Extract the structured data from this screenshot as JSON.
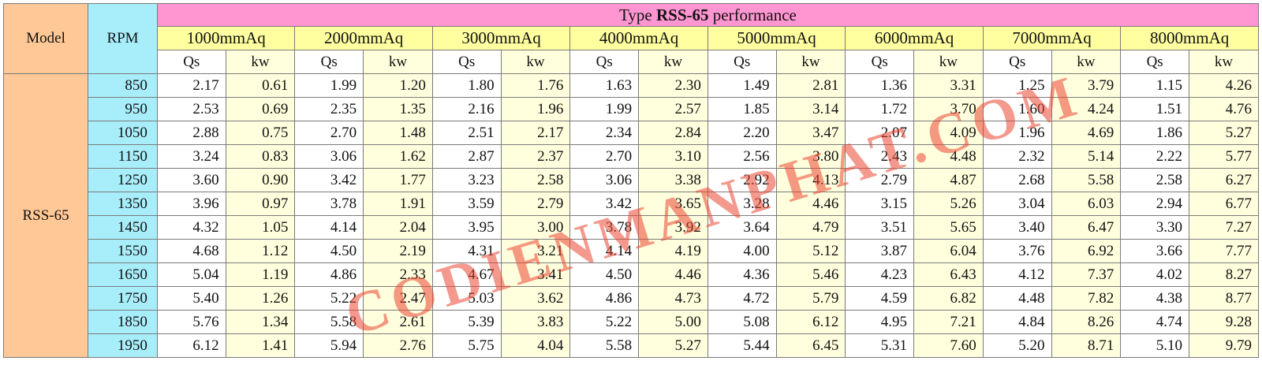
{
  "header": {
    "model_label": "Model",
    "rpm_label": "RPM",
    "title_prefix": "Type",
    "title_model": "RSS-65",
    "title_suffix": "performance",
    "pressures": [
      "1000mmAq",
      "2000mmAq",
      "3000mmAq",
      "4000mmAq",
      "5000mmAq",
      "6000mmAq",
      "7000mmAq",
      "8000mmAq"
    ],
    "qs_label": "Qs",
    "kw_label": "kw"
  },
  "model": "RSS-65",
  "watermark": "CODIENMANPHAT.COM",
  "colors": {
    "model_cell": "#ffc896",
    "rpm_cell": "#a8eefa",
    "title_cell": "#ff96d2",
    "pressure_cell": "#ffffa0",
    "kw_cell": "#ffffde",
    "watermark": "#eb4632"
  },
  "rows": [
    {
      "rpm": "850",
      "values": [
        "2.17",
        "0.61",
        "1.99",
        "1.20",
        "1.80",
        "1.76",
        "1.63",
        "2.30",
        "1.49",
        "2.81",
        "1.36",
        "3.31",
        "1.25",
        "3.79",
        "1.15",
        "4.26"
      ]
    },
    {
      "rpm": "950",
      "values": [
        "2.53",
        "0.69",
        "2.35",
        "1.35",
        "2.16",
        "1.96",
        "1.99",
        "2.57",
        "1.85",
        "3.14",
        "1.72",
        "3.70",
        "1.60",
        "4.24",
        "1.51",
        "4.76"
      ]
    },
    {
      "rpm": "1050",
      "values": [
        "2.88",
        "0.75",
        "2.70",
        "1.48",
        "2.51",
        "2.17",
        "2.34",
        "2.84",
        "2.20",
        "3.47",
        "2.07",
        "4.09",
        "1.96",
        "4.69",
        "1.86",
        "5.27"
      ]
    },
    {
      "rpm": "1150",
      "values": [
        "3.24",
        "0.83",
        "3.06",
        "1.62",
        "2.87",
        "2.37",
        "2.70",
        "3.10",
        "2.56",
        "3.80",
        "2.43",
        "4.48",
        "2.32",
        "5.14",
        "2.22",
        "5.77"
      ]
    },
    {
      "rpm": "1250",
      "values": [
        "3.60",
        "0.90",
        "3.42",
        "1.77",
        "3.23",
        "2.58",
        "3.06",
        "3.38",
        "2.92",
        "4.13",
        "2.79",
        "4.87",
        "2.68",
        "5.58",
        "2.58",
        "6.27"
      ]
    },
    {
      "rpm": "1350",
      "values": [
        "3.96",
        "0.97",
        "3.78",
        "1.91",
        "3.59",
        "2.79",
        "3.42",
        "3.65",
        "3.28",
        "4.46",
        "3.15",
        "5.26",
        "3.04",
        "6.03",
        "2.94",
        "6.77"
      ]
    },
    {
      "rpm": "1450",
      "values": [
        "4.32",
        "1.05",
        "4.14",
        "2.04",
        "3.95",
        "3.00",
        "3.78",
        "3.92",
        "3.64",
        "4.79",
        "3.51",
        "5.65",
        "3.40",
        "6.47",
        "3.30",
        "7.27"
      ]
    },
    {
      "rpm": "1550",
      "values": [
        "4.68",
        "1.12",
        "4.50",
        "2.19",
        "4.31",
        "3.21",
        "4.14",
        "4.19",
        "4.00",
        "5.12",
        "3.87",
        "6.04",
        "3.76",
        "6.92",
        "3.66",
        "7.77"
      ]
    },
    {
      "rpm": "1650",
      "values": [
        "5.04",
        "1.19",
        "4.86",
        "2.33",
        "4.67",
        "3.41",
        "4.50",
        "4.46",
        "4.36",
        "5.46",
        "4.23",
        "6.43",
        "4.12",
        "7.37",
        "4.02",
        "8.27"
      ]
    },
    {
      "rpm": "1750",
      "values": [
        "5.40",
        "1.26",
        "5.22",
        "2.47",
        "5.03",
        "3.62",
        "4.86",
        "4.73",
        "4.72",
        "5.79",
        "4.59",
        "6.82",
        "4.48",
        "7.82",
        "4.38",
        "8.77"
      ]
    },
    {
      "rpm": "1850",
      "values": [
        "5.76",
        "1.34",
        "5.58",
        "2.61",
        "5.39",
        "3.83",
        "5.22",
        "5.00",
        "5.08",
        "6.12",
        "4.95",
        "7.21",
        "4.84",
        "8.26",
        "4.74",
        "9.28"
      ]
    },
    {
      "rpm": "1950",
      "values": [
        "6.12",
        "1.41",
        "5.94",
        "2.76",
        "5.75",
        "4.04",
        "5.58",
        "5.27",
        "5.44",
        "6.45",
        "5.31",
        "7.60",
        "5.20",
        "8.71",
        "5.10",
        "9.79"
      ]
    }
  ]
}
